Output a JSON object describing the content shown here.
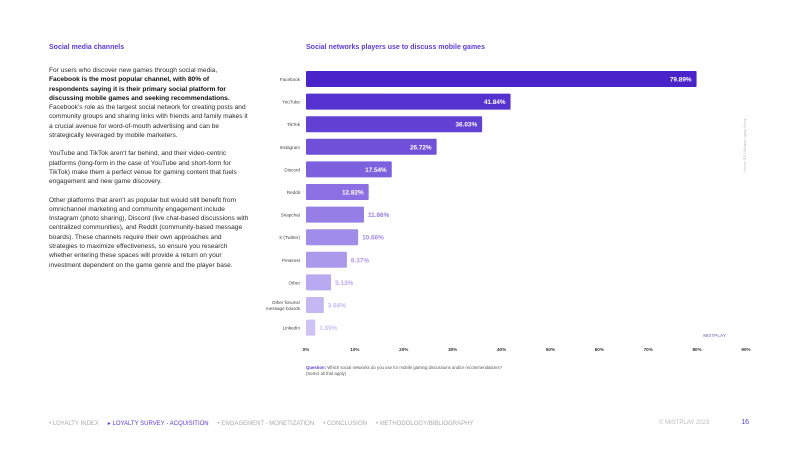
{
  "left": {
    "title": "Social media channels",
    "p1_pre": "For users who discover new games through social media, ",
    "p1_bold": "Facebook is the most popular channel, with 80% of respondents saying it is their primary social platform for discussing mobile games and seeking recommendations.",
    "p1_post": " Facebook's role as the largest social network for creating posts and community groups and sharing links with friends and family makes it a crucial avenue for word-of-mouth advertising and can be strategically leveraged by mobile marketers.",
    "p2": "YouTube and TikTok aren't far behind, and their video-centric platforms (long-form in the case of YouTube and short-form for TikTok) make them a perfect venue for gaming content that fuels engagement and new game discovery.",
    "p3": "Other platforms that aren't as popular but would still benefit from omnichannel marketing and community engagement include Instagram (photo sharing), Discord (live chat-based discussions with centralized communities), and Reddit (community-based message boards). These channels require their own approaches and strategies to maximize effectiveness, so ensure you research whether entering these spaces will provide a return on your investment dependent on the game genre and the player base."
  },
  "chart_title": "Social networks players use to discuss mobile games",
  "question_label": "Question:",
  "question_text": "Which social networks do you use for mobile gaming discussions and/or recommendations? (Select all that apply)",
  "side_note": "Source: 2023 Mistplay Loyalty Survey",
  "chart_logo": "MISTPLAY",
  "chart_data": {
    "type": "bar",
    "orientation": "horizontal",
    "title": "Social networks players use to discuss mobile games",
    "categories": [
      "Facebook",
      "YouTube",
      "TikTok",
      "Instagram",
      "Discord",
      "Reddit",
      "Snapchat",
      "X (Twitter)",
      "Pinterest",
      "Other",
      "Other forums/ message boards",
      "LinkedIn"
    ],
    "values": [
      79.89,
      41.84,
      36.03,
      26.72,
      17.54,
      12.82,
      11.86,
      10.66,
      8.37,
      5.13,
      3.64,
      1.89
    ],
    "labels": [
      "79.89%",
      "41.84%",
      "36.03%",
      "26.72%",
      "17.54%",
      "12.82%",
      "11.86%",
      "10.66%",
      "8.37%",
      "5.13%",
      "3.64%",
      "1.89%"
    ],
    "xticks": [
      0,
      10,
      20,
      30,
      40,
      50,
      60,
      70,
      80,
      90
    ],
    "xtick_labels": [
      "0%",
      "10%",
      "20%",
      "30%",
      "40%",
      "50%",
      "60%",
      "70%",
      "80%",
      "90%"
    ],
    "xlim": [
      0,
      90
    ],
    "grid": false
  },
  "footer": {
    "nav": [
      {
        "label": "LOYALTY INDEX",
        "active": false
      },
      {
        "label": "LOYALTY SURVEY - ACQUISITION",
        "active": true
      },
      {
        "label": "ENGAGEMENT - MONETIZATION",
        "active": false
      },
      {
        "label": "CONCLUSION",
        "active": false
      },
      {
        "label": "METHODOLOGY/BIBLIOGRAPHY",
        "active": false
      }
    ],
    "copyright": "© MISTPLAY 2023",
    "page_number": "16"
  },
  "colors": {
    "accent": "#5b3bd6",
    "bars": [
      "#4a24c9",
      "#5531cf",
      "#6240d4",
      "#7050d9",
      "#7d60de",
      "#8a70e2",
      "#957ee6",
      "#a08ce9",
      "#ab9aec",
      "#b8aaf0",
      "#c3b8f2",
      "#cdc4f5"
    ]
  }
}
